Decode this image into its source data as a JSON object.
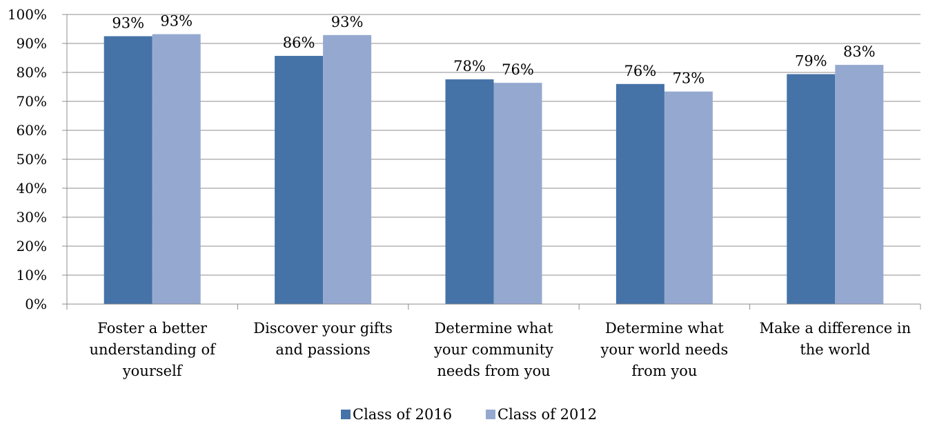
{
  "chart_data": {
    "type": "bar",
    "categories": [
      [
        "Foster a better",
        "understanding of",
        "yourself"
      ],
      [
        "Discover your gifts",
        "and passions"
      ],
      [
        "Determine what",
        "your community",
        "needs from you"
      ],
      [
        "Determine what",
        "your world needs",
        "from you"
      ],
      [
        "Make a difference in",
        "the world"
      ]
    ],
    "series": [
      {
        "name": "Class of 2016",
        "color": "#4572a7",
        "values": [
          0.925,
          0.857,
          0.776,
          0.76,
          0.794
        ],
        "labels": [
          "93%",
          "86%",
          "78%",
          "76%",
          "79%"
        ]
      },
      {
        "name": "Class of 2012",
        "color": "#95a9d0",
        "values": [
          0.932,
          0.929,
          0.764,
          0.734,
          0.826
        ],
        "labels": [
          "93%",
          "93%",
          "76%",
          "73%",
          "83%"
        ]
      }
    ],
    "ylim": [
      0,
      1
    ],
    "yticks": [
      "0%",
      "10%",
      "20%",
      "30%",
      "40%",
      "50%",
      "60%",
      "70%",
      "80%",
      "90%",
      "100%"
    ],
    "grid": true,
    "legend_position": "bottom",
    "title": "",
    "xlabel": "",
    "ylabel": ""
  }
}
